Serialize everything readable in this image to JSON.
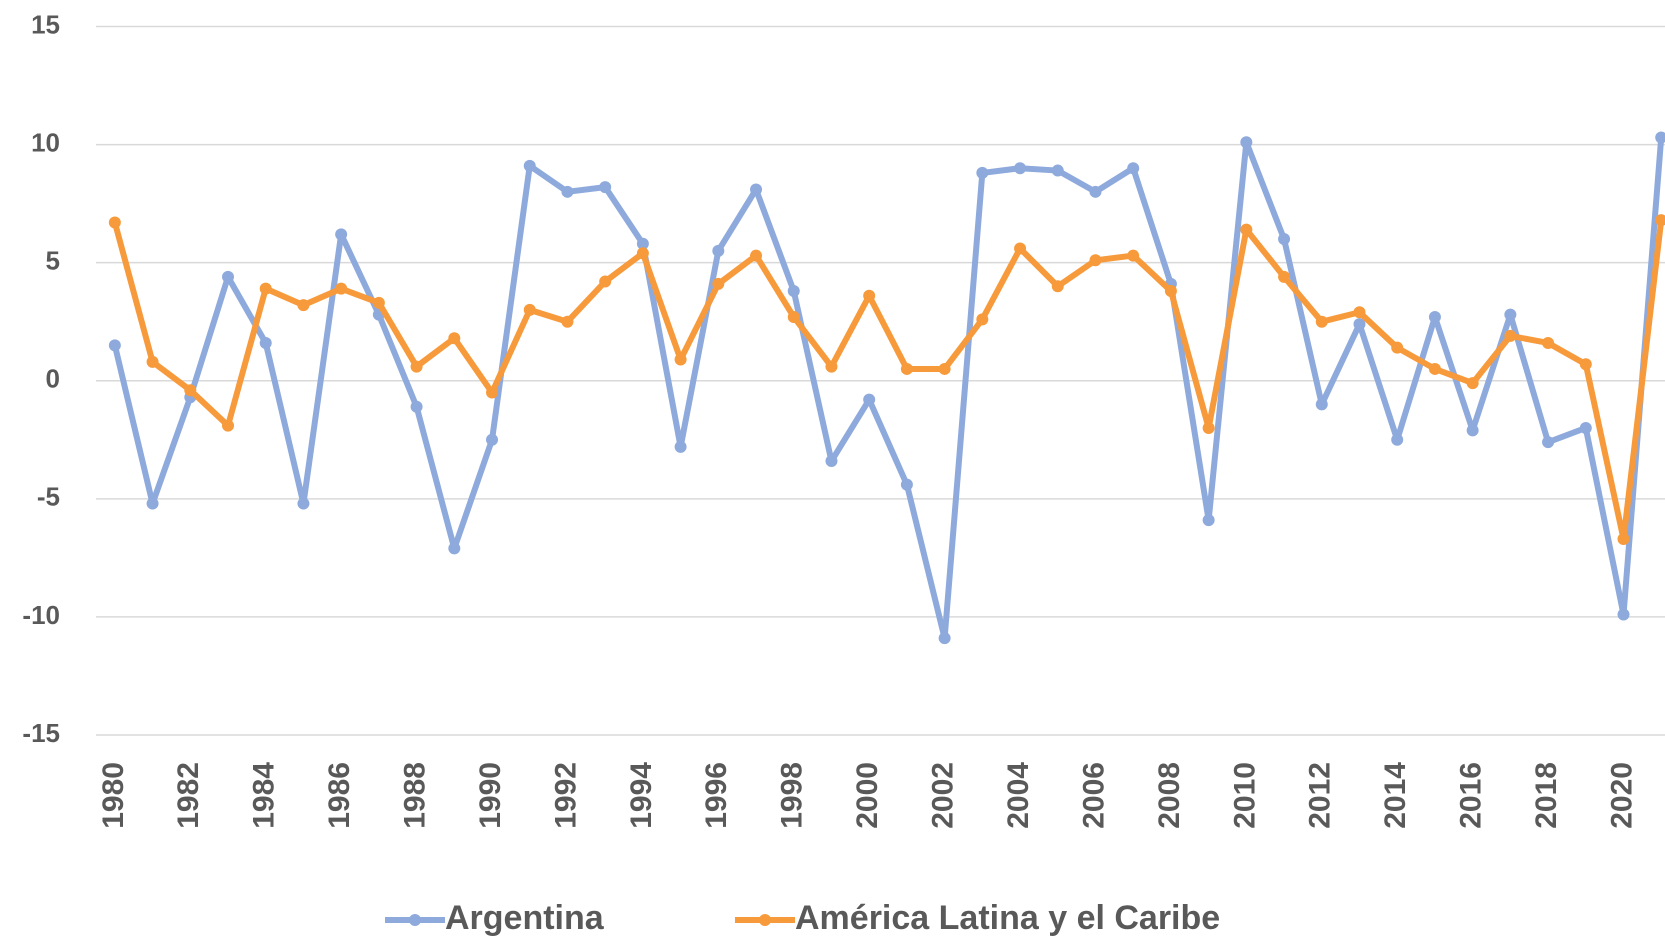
{
  "chart_data": {
    "type": "line",
    "x": [
      1980,
      1981,
      1982,
      1983,
      1984,
      1985,
      1986,
      1987,
      1988,
      1989,
      1990,
      1991,
      1992,
      1993,
      1994,
      1995,
      1996,
      1997,
      1998,
      1999,
      2000,
      2001,
      2002,
      2003,
      2004,
      2005,
      2006,
      2007,
      2008,
      2009,
      2010,
      2011,
      2012,
      2013,
      2014,
      2015,
      2016,
      2017,
      2018,
      2019,
      2020,
      2021
    ],
    "series": [
      {
        "name": "Argentina",
        "color": "#8eaadc",
        "values": [
          1.5,
          -5.2,
          -0.7,
          4.4,
          1.6,
          -5.2,
          6.2,
          2.8,
          -1.1,
          -7.1,
          -2.5,
          9.1,
          8.0,
          8.2,
          5.8,
          -2.8,
          5.5,
          8.1,
          3.8,
          -3.4,
          -0.8,
          -4.4,
          -10.9,
          8.8,
          9.0,
          8.9,
          8.0,
          9.0,
          4.1,
          -5.9,
          10.1,
          6.0,
          -1.0,
          2.4,
          -2.5,
          2.7,
          -2.1,
          2.8,
          -2.6,
          -2.0,
          -9.9,
          10.3
        ]
      },
      {
        "name": "América Latina y el Caribe",
        "color": "#f79a3b",
        "values": [
          6.7,
          0.8,
          -0.4,
          -1.9,
          3.9,
          3.2,
          3.9,
          3.3,
          0.6,
          1.8,
          -0.5,
          3.0,
          2.5,
          4.2,
          5.4,
          0.9,
          4.1,
          5.3,
          2.7,
          0.6,
          3.6,
          0.5,
          0.5,
          2.6,
          5.6,
          4.0,
          5.1,
          5.3,
          3.8,
          -2.0,
          6.4,
          4.4,
          2.5,
          2.9,
          1.4,
          0.5,
          -0.1,
          1.9,
          1.6,
          0.7,
          -6.7,
          6.8
        ]
      }
    ],
    "xlim": [
      1979.5,
      2021.1
    ],
    "xticks": [
      1980,
      1982,
      1984,
      1986,
      1988,
      1990,
      1992,
      1994,
      1996,
      1998,
      2000,
      2002,
      2004,
      2006,
      2008,
      2010,
      2012,
      2014,
      2016,
      2018,
      2020
    ],
    "ylim": [
      -15,
      15
    ],
    "yticks": [
      -15,
      -10,
      -5,
      0,
      5,
      10,
      15
    ],
    "grid": true,
    "legend": "bottom"
  }
}
